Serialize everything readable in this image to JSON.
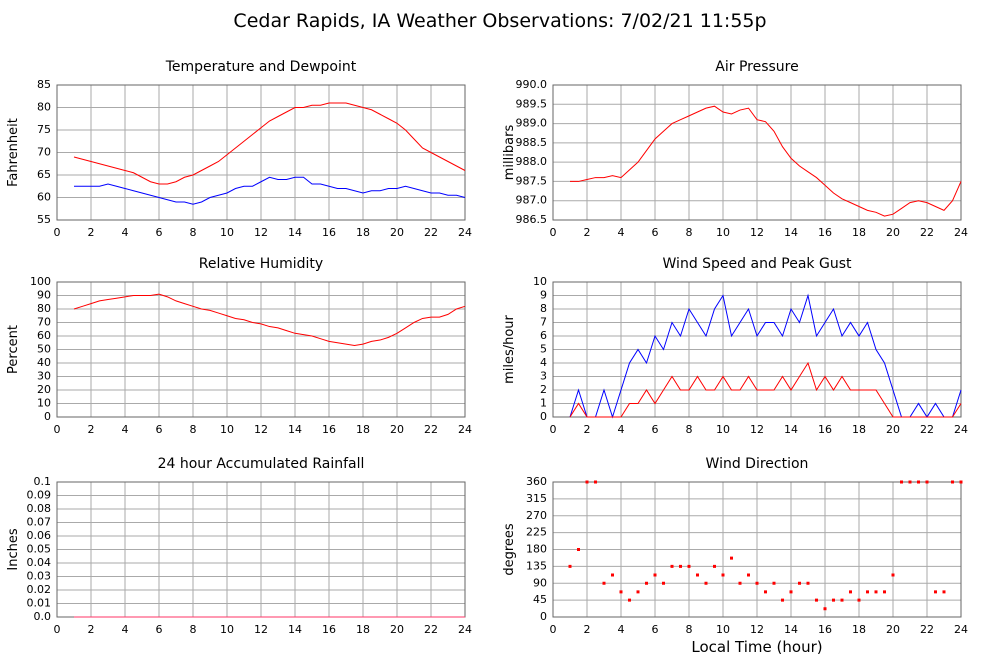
{
  "title": "Cedar Rapids, IA Weather Observations: 7/02/21 11:55p",
  "chart_data": [
    {
      "type": "line",
      "title": "Temperature and Dewpoint",
      "ylabel": "Fahrenheit",
      "x": [
        1,
        1.5,
        2,
        2.5,
        3,
        3.5,
        4,
        4.5,
        5,
        5.5,
        6,
        6.5,
        7,
        7.5,
        8,
        8.5,
        9,
        9.5,
        10,
        10.5,
        11,
        11.5,
        12,
        12.5,
        13,
        13.5,
        14,
        14.5,
        15,
        15.5,
        16,
        16.5,
        17,
        17.5,
        18,
        18.5,
        19,
        19.5,
        20,
        20.5,
        21,
        21.5,
        22,
        22.5,
        23,
        23.5,
        24
      ],
      "series": [
        {
          "color": "#ff0000",
          "values": [
            69,
            68.5,
            68,
            67.5,
            67,
            66.5,
            66,
            65.5,
            64.5,
            63.5,
            63,
            63,
            63.5,
            64.5,
            65,
            66,
            67,
            68,
            69.5,
            71,
            72.5,
            74,
            75.5,
            77,
            78,
            79,
            80,
            80,
            80.5,
            80.5,
            81,
            81,
            81,
            80.5,
            80,
            79.5,
            78.5,
            77.5,
            76.5,
            75,
            73,
            71,
            70,
            69,
            68,
            67,
            66
          ]
        },
        {
          "color": "#0000ff",
          "values": [
            62.5,
            62.5,
            62.5,
            62.5,
            63,
            62.5,
            62,
            61.5,
            61,
            60.5,
            60,
            59.5,
            59,
            59,
            58.5,
            59,
            60,
            60.5,
            61,
            62,
            62.5,
            62.5,
            63.5,
            64.5,
            64,
            64,
            64.5,
            64.5,
            63,
            63,
            62.5,
            62,
            62,
            61.5,
            61,
            61.5,
            61.5,
            62,
            62,
            62.5,
            62,
            61.5,
            61,
            61,
            60.5,
            60.5,
            60
          ]
        }
      ],
      "xlim": [
        0,
        24
      ],
      "xticks": [
        0,
        2,
        4,
        6,
        8,
        10,
        12,
        14,
        16,
        18,
        20,
        22,
        24
      ],
      "ylim": [
        55,
        85
      ],
      "yticks": [
        55,
        60,
        65,
        70,
        75,
        80,
        85
      ],
      "grid": true
    },
    {
      "type": "line",
      "title": "Air Pressure",
      "ylabel": "millibars",
      "x": [
        1,
        1.5,
        2,
        2.5,
        3,
        3.5,
        4,
        4.5,
        5,
        5.5,
        6,
        6.5,
        7,
        7.5,
        8,
        8.5,
        9,
        9.5,
        10,
        10.5,
        11,
        11.5,
        12,
        12.5,
        13,
        13.5,
        14,
        14.5,
        15,
        15.5,
        16,
        16.5,
        17,
        17.5,
        18,
        18.5,
        19,
        19.5,
        20,
        20.5,
        21,
        21.5,
        22,
        22.5,
        23,
        23.5,
        24
      ],
      "series": [
        {
          "color": "#ff0000",
          "values": [
            987.5,
            987.5,
            987.55,
            987.6,
            987.6,
            987.65,
            987.6,
            987.8,
            988.0,
            988.3,
            988.6,
            988.8,
            989.0,
            989.1,
            989.2,
            989.3,
            989.4,
            989.45,
            989.3,
            989.25,
            989.35,
            989.4,
            989.1,
            989.05,
            988.8,
            988.4,
            988.1,
            987.9,
            987.75,
            987.6,
            987.4,
            987.2,
            987.05,
            986.95,
            986.85,
            986.75,
            986.7,
            986.6,
            986.65,
            986.8,
            986.95,
            987.0,
            986.95,
            986.85,
            986.75,
            987.0,
            987.5
          ]
        }
      ],
      "xlim": [
        0,
        24
      ],
      "xticks": [
        0,
        2,
        4,
        6,
        8,
        10,
        12,
        14,
        16,
        18,
        20,
        22,
        24
      ],
      "ylim": [
        986.5,
        990
      ],
      "yticks": [
        986.5,
        {
          "value": 987,
          "label": "987.0"
        },
        987.5,
        {
          "value": 988,
          "label": "988.0"
        },
        988.5,
        {
          "value": 989,
          "label": "989.0"
        },
        989.5,
        {
          "value": 990,
          "label": "990.0"
        }
      ],
      "grid": true
    },
    {
      "type": "line",
      "title": "Relative Humidity",
      "ylabel": "Percent",
      "x": [
        1,
        1.5,
        2,
        2.5,
        3,
        3.5,
        4,
        4.5,
        5,
        5.5,
        6,
        6.5,
        7,
        7.5,
        8,
        8.5,
        9,
        9.5,
        10,
        10.5,
        11,
        11.5,
        12,
        12.5,
        13,
        13.5,
        14,
        14.5,
        15,
        15.5,
        16,
        16.5,
        17,
        17.5,
        18,
        18.5,
        19,
        19.5,
        20,
        20.5,
        21,
        21.5,
        22,
        22.5,
        23,
        23.5,
        24
      ],
      "series": [
        {
          "color": "#ff0000",
          "values": [
            80,
            82,
            84,
            86,
            87,
            88,
            89,
            90,
            90,
            90,
            91,
            89,
            86,
            84,
            82,
            80,
            79,
            77,
            75,
            73,
            72,
            70,
            69,
            67,
            66,
            64,
            62,
            61,
            60,
            58,
            56,
            55,
            54,
            53,
            54,
            56,
            57,
            59,
            62,
            66,
            70,
            73,
            74,
            74,
            76,
            80,
            82
          ]
        }
      ],
      "xlim": [
        0,
        24
      ],
      "xticks": [
        0,
        2,
        4,
        6,
        8,
        10,
        12,
        14,
        16,
        18,
        20,
        22,
        24
      ],
      "ylim": [
        0,
        100
      ],
      "yticks": [
        0,
        10,
        20,
        30,
        40,
        50,
        60,
        70,
        80,
        90,
        100
      ],
      "grid": true
    },
    {
      "type": "line",
      "title": "Wind Speed and Peak Gust",
      "ylabel": "miles/hour",
      "x": [
        1,
        1.5,
        2,
        2.5,
        3,
        3.5,
        4,
        4.5,
        5,
        5.5,
        6,
        6.5,
        7,
        7.5,
        8,
        8.5,
        9,
        9.5,
        10,
        10.5,
        11,
        11.5,
        12,
        12.5,
        13,
        13.5,
        14,
        14.5,
        15,
        15.5,
        16,
        16.5,
        17,
        17.5,
        18,
        18.5,
        19,
        19.5,
        20,
        20.5,
        21,
        21.5,
        22,
        22.5,
        23,
        23.5,
        24
      ],
      "series": [
        {
          "color": "#0000ff",
          "values": [
            0,
            2,
            0,
            0,
            2,
            0,
            2,
            4,
            5,
            4,
            6,
            5,
            7,
            6,
            8,
            7,
            6,
            8,
            9,
            6,
            7,
            8,
            6,
            7,
            7,
            6,
            8,
            7,
            9,
            6,
            7,
            8,
            6,
            7,
            6,
            7,
            5,
            4,
            2,
            0,
            0,
            1,
            0,
            1,
            0,
            0,
            2
          ]
        },
        {
          "color": "#ff0000",
          "values": [
            0,
            1,
            0,
            0,
            0,
            0,
            0,
            1,
            1,
            2,
            1,
            2,
            3,
            2,
            2,
            3,
            2,
            2,
            3,
            2,
            2,
            3,
            2,
            2,
            2,
            3,
            2,
            3,
            4,
            2,
            3,
            2,
            3,
            2,
            2,
            2,
            2,
            1,
            0,
            0,
            0,
            0,
            0,
            0,
            0,
            0,
            1
          ]
        }
      ],
      "xlim": [
        0,
        24
      ],
      "xticks": [
        0,
        2,
        4,
        6,
        8,
        10,
        12,
        14,
        16,
        18,
        20,
        22,
        24
      ],
      "ylim": [
        0,
        10
      ],
      "yticks": [
        0,
        1,
        2,
        3,
        4,
        5,
        6,
        7,
        8,
        9,
        10
      ],
      "grid": true
    },
    {
      "type": "line",
      "title": "24 hour Accumulated Rainfall",
      "ylabel": "Inches",
      "x": [
        1,
        1.5,
        2,
        2.5,
        3,
        3.5,
        4,
        4.5,
        5,
        5.5,
        6,
        6.5,
        7,
        7.5,
        8,
        8.5,
        9,
        9.5,
        10,
        10.5,
        11,
        11.5,
        12,
        12.5,
        13,
        13.5,
        14,
        14.5,
        15,
        15.5,
        16,
        16.5,
        17,
        17.5,
        18,
        18.5,
        19,
        19.5,
        20,
        20.5,
        21,
        21.5,
        22,
        22.5,
        23,
        23.5,
        24
      ],
      "series": [
        {
          "color": "#ff3366",
          "values": [
            0,
            0,
            0,
            0,
            0,
            0,
            0,
            0,
            0,
            0,
            0,
            0,
            0,
            0,
            0,
            0,
            0,
            0,
            0,
            0,
            0,
            0,
            0,
            0,
            0,
            0,
            0,
            0,
            0,
            0,
            0,
            0,
            0,
            0,
            0,
            0,
            0,
            0,
            0,
            0,
            0,
            0,
            0,
            0,
            0,
            0,
            0
          ]
        }
      ],
      "xlim": [
        0,
        24
      ],
      "xticks": [
        0,
        2,
        4,
        6,
        8,
        10,
        12,
        14,
        16,
        18,
        20,
        22,
        24
      ],
      "ylim": [
        0,
        0.1
      ],
      "yticks": [
        {
          "value": 0,
          "label": "0.0"
        },
        0.01,
        0.02,
        0.03,
        0.04,
        0.05,
        0.06,
        0.07,
        0.08,
        0.09,
        0.1
      ],
      "grid": true
    },
    {
      "type": "scatter",
      "title": "Wind Direction",
      "ylabel": "degrees",
      "xlabel": "Local Time (hour)",
      "x": [
        1,
        1.5,
        2,
        2.5,
        3,
        3.5,
        4,
        4.5,
        5,
        5.5,
        6,
        6.5,
        7,
        7.5,
        8,
        8.5,
        9,
        9.5,
        10,
        10.5,
        11,
        11.5,
        12,
        12.5,
        13,
        13.5,
        14,
        14.5,
        15,
        15.5,
        16,
        16.5,
        17,
        17.5,
        18,
        18.5,
        19,
        19.5,
        20,
        20.5,
        21,
        21.5,
        22,
        22.5,
        23,
        23.5,
        24
      ],
      "series": [
        {
          "color": "#ff0000",
          "values": [
            135,
            180,
            360,
            360,
            90,
            112,
            67,
            45,
            67,
            90,
            112,
            90,
            135,
            135,
            135,
            112,
            90,
            135,
            112,
            157,
            90,
            112,
            90,
            67,
            90,
            45,
            67,
            90,
            90,
            45,
            22,
            45,
            45,
            67,
            45,
            67,
            67,
            67,
            112,
            360,
            360,
            360,
            360,
            67,
            67,
            360,
            360
          ]
        }
      ],
      "xlim": [
        0,
        24
      ],
      "xticks": [
        0,
        2,
        4,
        6,
        8,
        10,
        12,
        14,
        16,
        18,
        20,
        22,
        24
      ],
      "ylim": [
        0,
        360
      ],
      "yticks": [
        0,
        45,
        90,
        135,
        180,
        225,
        270,
        315,
        360
      ],
      "grid": true
    }
  ]
}
